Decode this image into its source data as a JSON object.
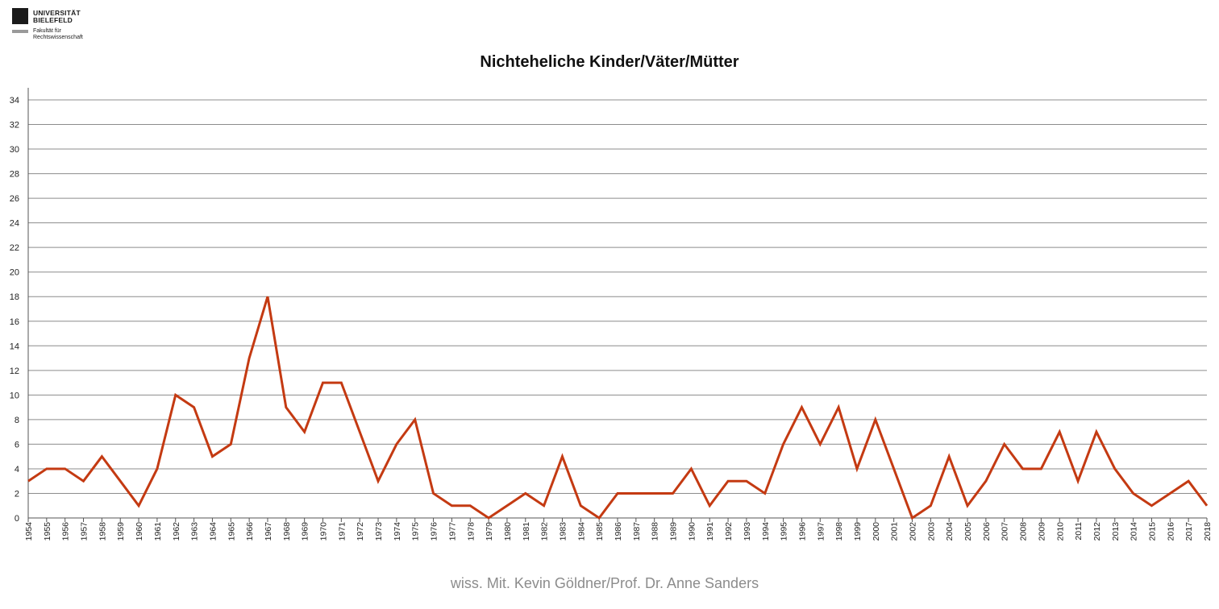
{
  "logo": {
    "name_line1": "UNIVERSITÄT",
    "name_line2": "BIELEFELD",
    "faculty_line1": "Fakultät für",
    "faculty_line2": "Rechtswissenschaft"
  },
  "footer": "wiss. Mit. Kevin Göldner/Prof.  Dr. Anne Sanders",
  "colors": {
    "series": "#c43a12",
    "grid": "#8c8c8c",
    "axis": "#555555"
  },
  "chart_data": {
    "type": "line",
    "title": "Nichteheliche Kinder/Väter/Mütter",
    "xlabel": "",
    "ylabel": "",
    "ylim": [
      0,
      34
    ],
    "yticks": [
      0,
      2,
      4,
      6,
      8,
      10,
      12,
      14,
      16,
      18,
      20,
      22,
      24,
      26,
      28,
      30,
      32,
      34
    ],
    "grid": true,
    "legend": "none",
    "x": [
      "1954",
      "1955",
      "1956",
      "1957",
      "1958",
      "1959",
      "1960",
      "1961",
      "1962",
      "1963",
      "1964",
      "1965",
      "1966",
      "1967",
      "1968",
      "1969",
      "1970",
      "1971",
      "1972",
      "1973",
      "1974",
      "1975",
      "1976",
      "1977",
      "1978",
      "1979",
      "1980",
      "1981",
      "1982",
      "1983",
      "1984",
      "1985",
      "1986",
      "1987",
      "1988",
      "1989",
      "1990",
      "1991",
      "1992",
      "1993",
      "1994",
      "1995",
      "1996",
      "1997",
      "1998",
      "1999",
      "2000",
      "2001",
      "2002",
      "2003",
      "2004",
      "2005",
      "2006",
      "2007",
      "2008",
      "2009",
      "2010",
      "2011",
      "2012",
      "2013",
      "2014",
      "2015",
      "2016",
      "2017",
      "2018"
    ],
    "series": [
      {
        "values": [
          3,
          4,
          4,
          3,
          5,
          3,
          1,
          4,
          10,
          9,
          5,
          6,
          13,
          18,
          9,
          7,
          11,
          11,
          7,
          3,
          6,
          8,
          2,
          1,
          1,
          0,
          1,
          2,
          1,
          5,
          1,
          0,
          2,
          2,
          2,
          2,
          4,
          1,
          3,
          3,
          2,
          6,
          9,
          6,
          9,
          4,
          8,
          4,
          0,
          1,
          5,
          1,
          3,
          6,
          4,
          4,
          7,
          3,
          7,
          4,
          2,
          1,
          2,
          3,
          1
        ]
      }
    ]
  }
}
